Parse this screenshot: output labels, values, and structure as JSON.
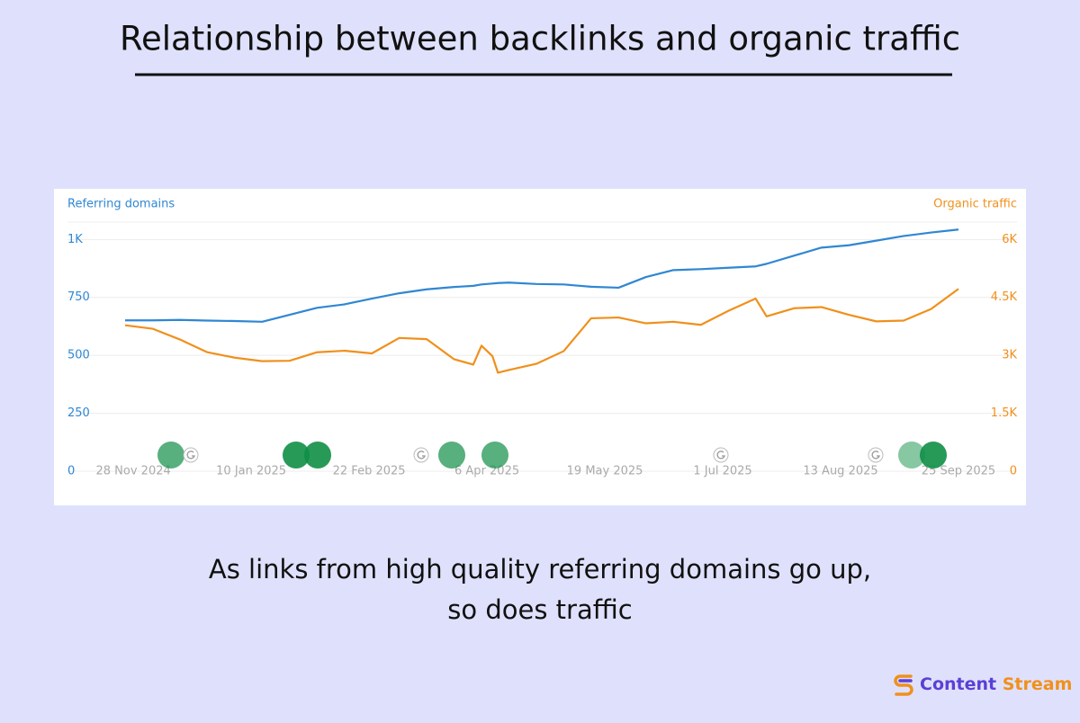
{
  "title": "Relationship between backlinks and organic traffic",
  "caption": [
    "As links from high quality referring domains go up,",
    "so does traffic"
  ],
  "brand": {
    "first": "Content",
    "second": "Stream"
  },
  "chart_data": {
    "type": "line",
    "x": [
      "2024-11-25",
      "2024-12-05",
      "2024-12-15",
      "2024-12-25",
      "2025-01-04",
      "2025-01-14",
      "2025-01-24",
      "2025-02-03",
      "2025-02-13",
      "2025-02-23",
      "2025-03-05",
      "2025-03-15",
      "2025-03-25",
      "2025-04-01",
      "2025-04-04",
      "2025-04-08",
      "2025-04-10",
      "2025-04-14",
      "2025-04-24",
      "2025-05-04",
      "2025-05-14",
      "2025-05-24",
      "2025-06-03",
      "2025-06-13",
      "2025-06-23",
      "2025-07-03",
      "2025-07-13",
      "2025-07-17",
      "2025-07-27",
      "2025-08-06",
      "2025-08-16",
      "2025-08-26",
      "2025-09-05",
      "2025-09-15",
      "2025-09-25"
    ],
    "series": [
      {
        "name": "Referring domains",
        "color": "#2f87d3",
        "axis": "y",
        "values": [
          651,
          651,
          653,
          650,
          648,
          645,
          675,
          705,
          720,
          745,
          768,
          785,
          795,
          800,
          806,
          810,
          812,
          814,
          808,
          806,
          796,
          792,
          838,
          868,
          872,
          878,
          884,
          895,
          930,
          965,
          975,
          995,
          1015,
          1030,
          1043
        ]
      },
      {
        "name": "Organic traffic",
        "color": "#f0901c",
        "axis": "y2",
        "values": [
          3780,
          3690,
          3410,
          3080,
          2940,
          2850,
          2860,
          3080,
          3120,
          3050,
          3450,
          3420,
          2900,
          2760,
          3250,
          2980,
          2550,
          2620,
          2780,
          3110,
          3960,
          3980,
          3830,
          3870,
          3790,
          4150,
          4470,
          4010,
          4220,
          4250,
          4050,
          3880,
          3900,
          4200,
          4720
        ]
      }
    ],
    "xlim": [
      "2024-11-25",
      "2025-09-25"
    ],
    "xticks": [
      {
        "value": "2024-11-28",
        "label": "28 Nov 2024"
      },
      {
        "value": "2025-01-10",
        "label": "10 Jan 2025"
      },
      {
        "value": "2025-02-22",
        "label": "22 Feb 2025"
      },
      {
        "value": "2025-04-06",
        "label": "6 Apr 2025"
      },
      {
        "value": "2025-05-19",
        "label": "19 May 2025"
      },
      {
        "value": "2025-07-01",
        "label": "1 Jul 2025"
      },
      {
        "value": "2025-08-13",
        "label": "13 Aug 2025"
      },
      {
        "value": "2025-09-25",
        "label": "25 Sep 2025"
      }
    ],
    "ylim": [
      0,
      1075
    ],
    "yticks": [
      0,
      250,
      500,
      750,
      {
        "value": 1000,
        "label": "1K"
      }
    ],
    "y2lim": [
      0,
      6450
    ],
    "y2ticks": [
      0,
      {
        "value": 1500,
        "label": "1.5K"
      },
      {
        "value": 3000,
        "label": "3K"
      },
      {
        "value": 4500,
        "label": "4.5K"
      },
      {
        "value": 6000,
        "label": "6K"
      }
    ],
    "grid": true
  }
}
